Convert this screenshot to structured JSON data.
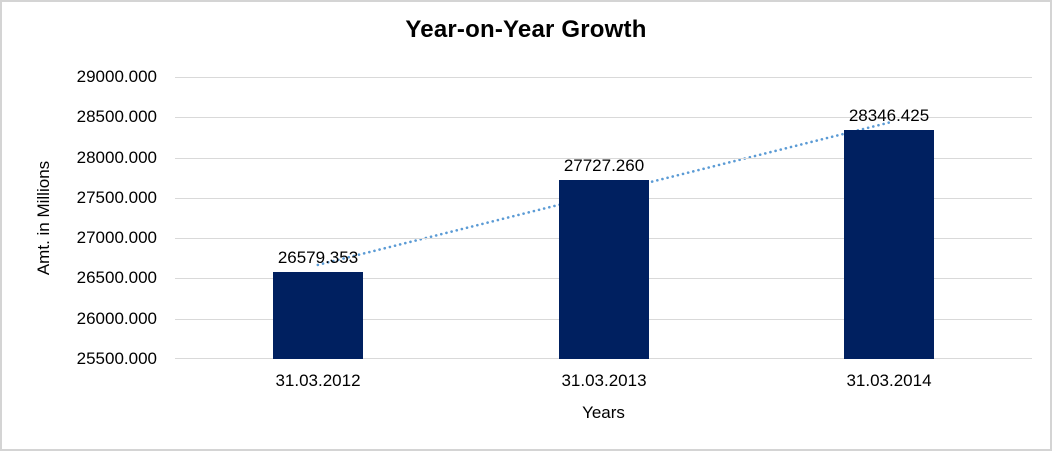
{
  "chart_data": {
    "type": "bar",
    "title": "Year-on-Year Growth",
    "xlabel": "Years",
    "ylabel": "Amt. in Millions",
    "categories": [
      "31.03.2012",
      "31.03.2013",
      "31.03.2014"
    ],
    "values": [
      26579.353,
      27727.26,
      28346.425
    ],
    "value_labels": [
      "26579.353",
      "27727.260",
      "28346.425"
    ],
    "ylim": [
      25500,
      29000
    ],
    "yticks": [
      {
        "value": 29000,
        "label": "29000.000"
      },
      {
        "value": 28500,
        "label": "28500.000"
      },
      {
        "value": 28000,
        "label": "28000.000"
      },
      {
        "value": 27500,
        "label": "27500.000"
      },
      {
        "value": 27000,
        "label": "27000.000"
      },
      {
        "value": 26500,
        "label": "26500.000"
      },
      {
        "value": 26000,
        "label": "26000.000"
      },
      {
        "value": 25500,
        "label": "25500.000"
      }
    ],
    "grid": "horizontal",
    "legend": "none",
    "trendline": {
      "type": "linear",
      "style": "dotted"
    },
    "colors": {
      "bar": "#002060",
      "trendline": "#5B9BD5",
      "gridline": "#D9D9D9",
      "text": "#000000",
      "border": "#D4D4D4"
    }
  }
}
